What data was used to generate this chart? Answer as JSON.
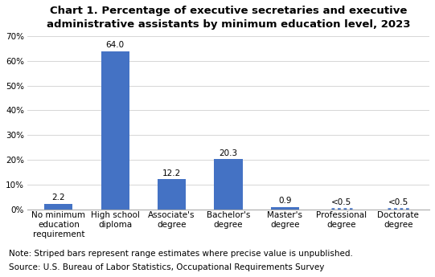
{
  "title": "Chart 1. Percentage of executive secretaries and executive\nadministrative assistants by minimum education level, 2023",
  "categories": [
    "No minimum\neducation\nrequirement",
    "High school\ndiploma",
    "Associate's\ndegree",
    "Bachelor's\ndegree",
    "Master's\ndegree",
    "Professional\ndegree",
    "Doctorate\ndegree"
  ],
  "values": [
    2.2,
    64.0,
    12.2,
    20.3,
    0.9,
    0.25,
    0.25
  ],
  "labels": [
    "2.2",
    "64.0",
    "12.2",
    "20.3",
    "0.9",
    "<0.5",
    "<0.5"
  ],
  "striped": [
    false,
    false,
    false,
    false,
    false,
    true,
    true
  ],
  "bar_color": "#4472c4",
  "ylim": [
    0,
    70
  ],
  "yticks": [
    0,
    10,
    20,
    30,
    40,
    50,
    60,
    70
  ],
  "ytick_labels": [
    "0%",
    "10%",
    "20%",
    "30%",
    "40%",
    "50%",
    "60%",
    "70%"
  ],
  "note_line1": "Note: Striped bars represent range estimates where precise value is unpublished.",
  "note_line2": "Source: U.S. Bureau of Labor Statistics, Occupational Requirements Survey",
  "title_fontsize": 9.5,
  "label_fontsize": 7.5,
  "tick_fontsize": 7.5,
  "note_fontsize": 7.5,
  "background_color": "#ffffff"
}
